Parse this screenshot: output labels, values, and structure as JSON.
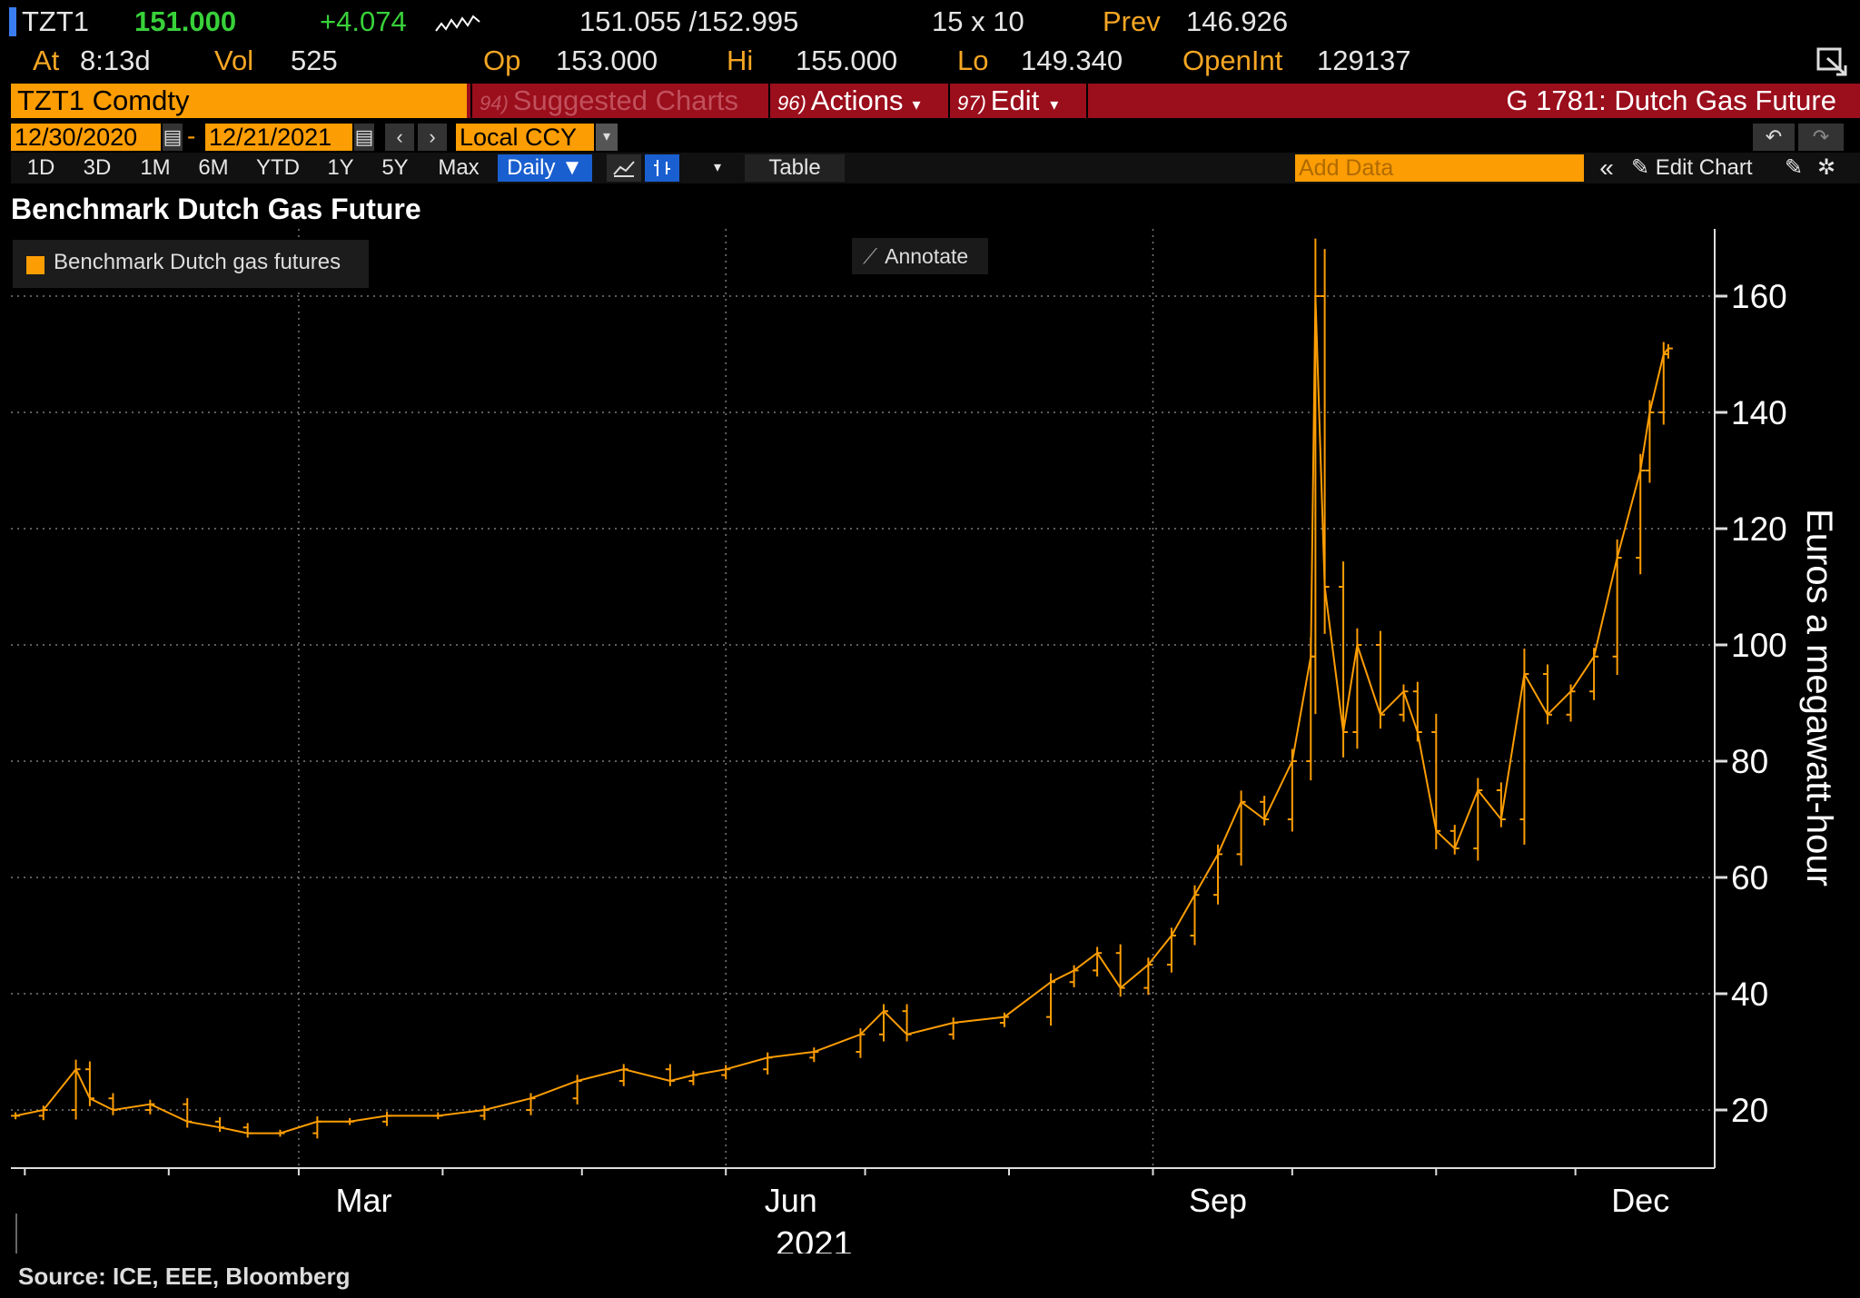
{
  "quote": {
    "ticker": "TZT1",
    "last": "151.000",
    "change": "+4.074",
    "bid_ask": "151.055 /152.995",
    "size": "15 x 10",
    "prev_label": "Prev",
    "prev": "146.926",
    "at_label": "At",
    "at_value": "8:13d",
    "vol_label": "Vol",
    "vol": "525",
    "op_label": "Op",
    "op": "153.000",
    "hi_label": "Hi",
    "hi": "155.000",
    "lo_label": "Lo",
    "lo": "149.340",
    "openint_label": "OpenInt",
    "openint": "129137"
  },
  "toolbar": {
    "security": "TZT1 Comdty",
    "suggested_num": "94)",
    "suggested": "Suggested Charts",
    "actions_num": "96)",
    "actions": "Actions",
    "edit_num": "97)",
    "edit": "Edit",
    "function_title": "G 1781: Dutch Gas Future",
    "start_date": "12/30/2020",
    "end_date": "12/21/2021",
    "date_sep": "-",
    "currency": "Local CCY",
    "ranges": [
      "1D",
      "3D",
      "1M",
      "6M",
      "YTD",
      "1Y",
      "5Y",
      "Max"
    ],
    "period": "Daily",
    "table": "Table",
    "add_data_placeholder": "Add Data",
    "edit_chart": "Edit Chart"
  },
  "chart": {
    "title": "Benchmark Dutch Gas Future",
    "annotate": "Annotate",
    "source": "Source: ICE, EEE, Bloomberg"
  },
  "colors": {
    "series": "#fc9d03",
    "accent": "#fc9d03",
    "toolbar_red": "#9b0e1c",
    "up_green": "#38d13a",
    "selected_blue": "#1a5fd0"
  },
  "chart_data": {
    "type": "line",
    "title": "Benchmark Dutch Gas Future",
    "ylabel": "Euros a megawatt-hour",
    "xlabel": "2021",
    "ylim": [
      10,
      170
    ],
    "yticks": [
      20,
      40,
      60,
      80,
      100,
      120,
      140,
      160
    ],
    "xticks": [
      "Mar",
      "Jun",
      "Sep",
      "Dec"
    ],
    "year_label": "2021",
    "grid": true,
    "legend": "top-left",
    "series": [
      {
        "name": "Benchmark Dutch gas futures",
        "x": [
          "2020-12-30",
          "2021-01-05",
          "2021-01-12",
          "2021-01-15",
          "2021-01-20",
          "2021-01-28",
          "2021-02-05",
          "2021-02-12",
          "2021-02-18",
          "2021-02-25",
          "2021-03-05",
          "2021-03-12",
          "2021-03-20",
          "2021-03-31",
          "2021-04-10",
          "2021-04-20",
          "2021-04-30",
          "2021-05-10",
          "2021-05-20",
          "2021-05-25",
          "2021-06-01",
          "2021-06-10",
          "2021-06-20",
          "2021-06-30",
          "2021-07-05",
          "2021-07-10",
          "2021-07-20",
          "2021-07-31",
          "2021-08-10",
          "2021-08-15",
          "2021-08-20",
          "2021-08-25",
          "2021-08-31",
          "2021-09-05",
          "2021-09-10",
          "2021-09-15",
          "2021-09-20",
          "2021-09-25",
          "2021-10-01",
          "2021-10-05",
          "2021-10-06",
          "2021-10-08",
          "2021-10-12",
          "2021-10-15",
          "2021-10-20",
          "2021-10-25",
          "2021-10-28",
          "2021-11-01",
          "2021-11-05",
          "2021-11-10",
          "2021-11-15",
          "2021-11-20",
          "2021-11-25",
          "2021-11-30",
          "2021-12-05",
          "2021-12-10",
          "2021-12-15",
          "2021-12-17",
          "2021-12-20",
          "2021-12-21"
        ],
        "values": [
          19,
          20,
          27,
          22,
          20,
          21,
          18,
          17,
          16,
          16,
          18,
          18,
          19,
          19,
          20,
          22,
          25,
          27,
          25,
          26,
          27,
          29,
          30,
          33,
          37,
          33,
          35,
          36,
          42,
          44,
          47,
          41,
          45,
          50,
          57,
          64,
          73,
          70,
          80,
          98,
          160,
          110,
          85,
          100,
          88,
          92,
          85,
          68,
          65,
          75,
          70,
          95,
          88,
          92,
          98,
          115,
          130,
          140,
          150,
          151
        ]
      }
    ]
  }
}
